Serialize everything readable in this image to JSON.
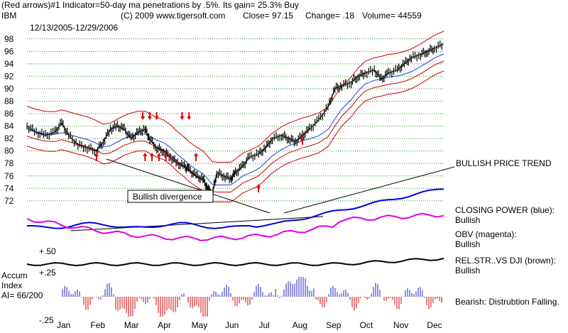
{
  "header": {
    "line1": "(Red arrows)#1 Indicator=50-day ma penetrations by .5%. Its gain= 25.3% Buy",
    "symbol": "IBM",
    "copyright": "(C) 2009 www.tigersoft.com",
    "close_text": "Close=  97.15",
    "change_text": "Change= .18",
    "volume_text": "Volume= 44559",
    "date_range": "12/13/2005-12/29/2006"
  },
  "chart_data": {
    "type": "line",
    "title": "",
    "xlabel": "",
    "ylabel": "",
    "months": [
      "Jan",
      "Feb",
      "Mar",
      "Apr",
      "May",
      "Jun",
      "Jul",
      "Aug",
      "Sep",
      "Oct",
      "Nov",
      "Dec"
    ],
    "y_ticks": [
      98,
      96,
      94,
      92,
      90,
      88,
      86,
      84,
      82,
      80,
      78,
      76,
      74,
      72
    ],
    "ylim": [
      70.5,
      99
    ],
    "grid": true,
    "price_close": [
      [
        0,
        84.0
      ],
      [
        0.4,
        83.0
      ],
      [
        0.8,
        82.5
      ],
      [
        1.2,
        83.0
      ],
      [
        1.5,
        84.5
      ],
      [
        1.8,
        82.5
      ],
      [
        2.2,
        81.0
      ],
      [
        2.6,
        80.5
      ],
      [
        3.0,
        80.0
      ],
      [
        3.3,
        81.5
      ],
      [
        3.6,
        83.5
      ],
      [
        3.9,
        84.0
      ],
      [
        4.2,
        83.5
      ],
      [
        4.5,
        82.0
      ],
      [
        4.8,
        83.0
      ],
      [
        5.1,
        83.5
      ],
      [
        5.3,
        82.0
      ],
      [
        5.6,
        80.5
      ],
      [
        5.9,
        80.0
      ],
      [
        6.2,
        79.0
      ],
      [
        6.5,
        78.0
      ],
      [
        6.8,
        77.5
      ],
      [
        7.0,
        77.0
      ],
      [
        7.3,
        76.0
      ],
      [
        7.6,
        75.5
      ],
      [
        7.8,
        74.0
      ],
      [
        8.0,
        73.0
      ],
      [
        8.2,
        76.5
      ],
      [
        8.5,
        76.0
      ],
      [
        8.8,
        75.5
      ],
      [
        9.0,
        76.5
      ],
      [
        9.3,
        77.5
      ],
      [
        9.6,
        79.0
      ],
      [
        10.0,
        79.5
      ],
      [
        10.3,
        80.5
      ],
      [
        10.6,
        82.0
      ],
      [
        11.0,
        82.5
      ],
      [
        11.3,
        82.0
      ],
      [
        11.6,
        81.5
      ],
      [
        11.9,
        82.5
      ],
      [
        12.2,
        83.5
      ],
      [
        12.6,
        85.0
      ],
      [
        13.0,
        87.0
      ],
      [
        13.3,
        90.0
      ],
      [
        13.6,
        90.5
      ],
      [
        14.0,
        91.0
      ],
      [
        14.3,
        92.0
      ],
      [
        14.6,
        92.5
      ],
      [
        15.0,
        93.0
      ],
      [
        15.3,
        91.5
      ],
      [
        15.6,
        92.5
      ],
      [
        16.0,
        93.0
      ],
      [
        16.3,
        94.0
      ],
      [
        16.6,
        95.0
      ],
      [
        17.0,
        95.5
      ],
      [
        17.3,
        96.0
      ],
      [
        17.6,
        96.5
      ],
      [
        18.0,
        97.2
      ]
    ],
    "annotations": [
      {
        "text": "Bullish divergence"
      },
      {
        "text": "BULLISH PRICE TREND"
      }
    ],
    "indicators": [
      {
        "label": "CLOSING POWER (blue):",
        "status": "Bullish"
      },
      {
        "label": "OBV (magenta):",
        "status": "Bullish"
      },
      {
        "label": "REL.STR..VS DJI (brown):",
        "status": "Bullish"
      }
    ],
    "relstr_ticks": [
      "+.50",
      "+.25",
      "-.25"
    ],
    "accum": {
      "label_line1": "Accum",
      "label_line2": "Index",
      "label_line3": "AI= 66/200",
      "note": "Bearish:  Distrubtion Falling."
    }
  },
  "colors": {
    "price": "#000000",
    "bands": "#cc0000",
    "ma": "#1f3fd8",
    "closing_power": "#0000dd",
    "obv": "#e000e0",
    "relstr": "#000000",
    "accum_pos": "#2020c0",
    "accum_neg": "#cc0000",
    "grid": "#2a8a2a",
    "arrow": "#dd0000"
  }
}
